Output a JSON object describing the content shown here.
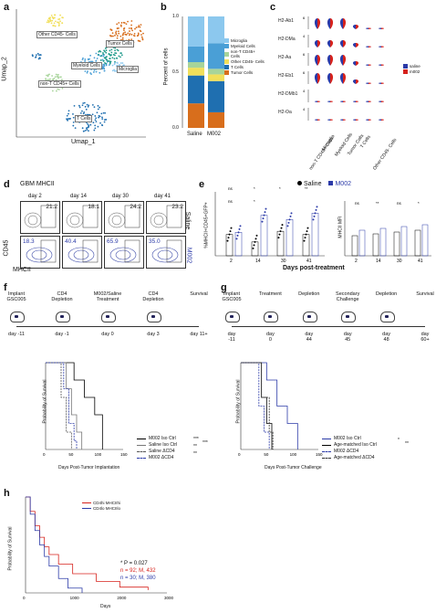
{
  "panels": {
    "a": {
      "label": "a",
      "xlabel": "Umap_1",
      "ylabel": "Umap_2",
      "clusters": [
        "Other CD45- Cells",
        "Tumor Cells",
        "Myeloid Cells",
        "Microglia",
        "non-T CD45+ Cells",
        "T Cells"
      ],
      "xticks": [
        "-15",
        "-10",
        "-5",
        "0",
        "5",
        "10"
      ],
      "yticks": [
        "10",
        "5",
        "0",
        "-5",
        "-10"
      ]
    },
    "b": {
      "label": "b",
      "ylabel": "Percent of cells",
      "categories": [
        "Saline",
        "M002"
      ],
      "legend": [
        "Microglia",
        "Myeloid Cells",
        "non-T CD45+ Cells",
        "Other CD45- Cells",
        "T Cells",
        "Tumor Cells"
      ],
      "colors": [
        "#8cc8ee",
        "#4a9fd6",
        "#a7d49a",
        "#f1df5a",
        "#1f6fb0",
        "#d86e1c"
      ],
      "yticks": [
        "1.0",
        "0.5",
        "0.0"
      ]
    },
    "c": {
      "label": "c",
      "genes": [
        "H2-Ab1",
        "H2-DMa",
        "H2-Aa",
        "H2-Eb1",
        "H2-DMb1",
        "H2-Oa"
      ],
      "ymax": [
        "6",
        "4",
        "6",
        "6",
        "4",
        "4"
      ],
      "celltypes": [
        "non-T CD45+ Cells",
        "Microglia",
        "Myeloid Cells",
        "Tumor Cells",
        "T Cells",
        "Other CD45- Cells"
      ],
      "legend": [
        {
          "name": "saline",
          "color": "#2b3aa8"
        },
        {
          "name": "m002",
          "color": "#d6221c"
        }
      ]
    },
    "d": {
      "label": "d",
      "title": "GBM MHCII",
      "days": [
        "day 2",
        "day 14",
        "day 30",
        "day 41"
      ],
      "saline_vals": [
        "21.2",
        "18.1",
        "24.2",
        "23.2"
      ],
      "m002_vals": [
        "18.3",
        "40.4",
        "65.9",
        "35.0"
      ],
      "row_labels": [
        "Saline",
        "M002"
      ],
      "ylabel": "CD45",
      "xlabel": "MHCII"
    },
    "e": {
      "label": "e",
      "legend": [
        "Saline",
        "M002"
      ],
      "ylabel_left": "%MHCII+CD45+GFP+",
      "ylabel_right": "MHCII MFI",
      "xlabel": "Days post-treatment",
      "days": [
        "2",
        "14",
        "30",
        "41"
      ],
      "sig_left": [
        "ns",
        "*",
        "*",
        "**",
        "ns",
        "*"
      ],
      "sig_right": [
        "ns",
        "**",
        "ns",
        "*"
      ]
    },
    "f": {
      "label": "f",
      "timeline": [
        {
          "title": "Implant\nGSC005",
          "day": "day -11"
        },
        {
          "title": "CD4\nDepletion",
          "day": "day -1"
        },
        {
          "title": "M002/Saline\nTreatment",
          "day": "day 0"
        },
        {
          "title": "CD4\nDepletion",
          "day": "day 3"
        },
        {
          "title": "Survival",
          "day": "day 11+"
        }
      ],
      "ylabel": "Probability of Survival",
      "xlabel": "Days Post-Tumor Implantation",
      "xticks": [
        "0",
        "50",
        "100",
        "150"
      ],
      "legend": [
        "M002 Iso Ctrl",
        "Saline Iso Ctrl",
        "Saline ΔCD4",
        "M002 ΔCD4"
      ],
      "sig": [
        "***",
        "**",
        "***",
        "**"
      ]
    },
    "g": {
      "label": "g",
      "timeline": [
        {
          "title": "Implant\nGSC005",
          "day": "day\n-11"
        },
        {
          "title": "Treatment",
          "day": "day\n0"
        },
        {
          "title": "Depletion",
          "day": "day\n44"
        },
        {
          "title": "Secondary\nChallenge",
          "day": "day\n45"
        },
        {
          "title": "Depletion",
          "day": "day\n48"
        },
        {
          "title": "Survival",
          "day": "day\n60+"
        }
      ],
      "ylabel": "Probability of Survival",
      "xlabel": "Days Post-Tumor Challenge",
      "xticks": [
        "0",
        "50",
        "100",
        "150"
      ],
      "legend": [
        "M002 Iso Ctrl",
        "Age-matched Iso Ctrl",
        "M002 ΔCD4",
        "Age-matched ΔCD4"
      ],
      "sig": [
        "*",
        "**"
      ]
    },
    "h": {
      "label": "h",
      "ylabel": "Probability of Survival",
      "xlabel": "Days",
      "xticks": [
        "0",
        "1000",
        "2000",
        "3000"
      ],
      "legend": [
        {
          "name": "CD4hi MHCIIhi",
          "color": "#d6221c"
        },
        {
          "name": "CD4lo MHCIIlo",
          "color": "#2b3aa8"
        }
      ],
      "stats": [
        "* P = 0.027",
        "n = 92; M, 432",
        "n = 30; M, 380"
      ]
    }
  },
  "chart_data": [
    {
      "type": "bar",
      "title": "",
      "ylabel": "Percent of cells",
      "categories": [
        "Saline",
        "M002"
      ],
      "series": [
        {
          "name": "Tumor Cells",
          "values": [
            0.22,
            0.14
          ]
        },
        {
          "name": "T Cells",
          "values": [
            0.25,
            0.28
          ]
        },
        {
          "name": "Other CD45- Cells",
          "values": [
            0.07,
            0.06
          ]
        },
        {
          "name": "non-T CD45+ Cells",
          "values": [
            0.05,
            0.05
          ]
        },
        {
          "name": "Myeloid Cells",
          "values": [
            0.14,
            0.23
          ]
        },
        {
          "name": "Microglia",
          "values": [
            0.27,
            0.24
          ]
        }
      ],
      "ylim": [
        0,
        1.0
      ]
    },
    {
      "type": "scatter",
      "ylabel": "%MHCII+CD45+GFP+",
      "x": [
        "2",
        "14",
        "30",
        "41"
      ],
      "series": [
        {
          "name": "Saline",
          "values": [
            20,
            13,
            23,
            20
          ]
        },
        {
          "name": "M002",
          "values": [
            22,
            38,
            34,
            40
          ]
        }
      ]
    },
    {
      "type": "line",
      "ylabel": "Probability of Survival",
      "xlabel": "Days",
      "series": [
        {
          "name": "CD4hi MHCIIhi",
          "x": [
            0,
            100,
            200,
            300,
            400,
            500,
            700,
            1000,
            1500,
            2000,
            2600
          ],
          "values": [
            1.0,
            0.85,
            0.7,
            0.58,
            0.48,
            0.4,
            0.3,
            0.2,
            0.12,
            0.06,
            0.03
          ]
        },
        {
          "name": "CD4lo MHCIIlo",
          "x": [
            0,
            100,
            200,
            300,
            400,
            500,
            700,
            900,
            1200
          ],
          "values": [
            1.0,
            0.82,
            0.65,
            0.5,
            0.38,
            0.28,
            0.15,
            0.05,
            0.0
          ]
        }
      ]
    }
  ]
}
